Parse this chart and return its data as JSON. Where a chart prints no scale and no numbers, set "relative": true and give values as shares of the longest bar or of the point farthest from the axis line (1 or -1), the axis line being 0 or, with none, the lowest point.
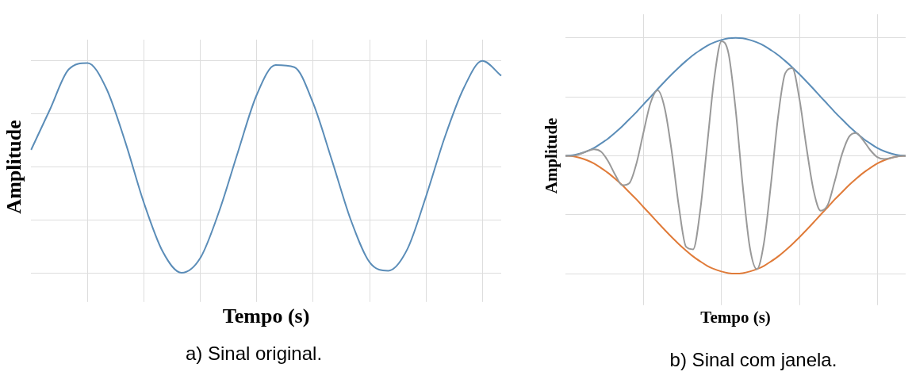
{
  "chart_data": [
    {
      "type": "line",
      "relative": true,
      "grid": true,
      "legend": false,
      "marker": "none",
      "line_style": "solid",
      "tick_labels": false,
      "xlabel": "Tempo (s)",
      "ylabel": "Amplitude",
      "annotations": [
        "a)   Sinal original."
      ],
      "categories": [
        null,
        null,
        null,
        null,
        null,
        null,
        null,
        null,
        null,
        null,
        null,
        null,
        null,
        null,
        null,
        null,
        null,
        null,
        null,
        null,
        null,
        null,
        null,
        null,
        null,
        null
      ],
      "series": [
        {
          "color": "#5b8db8",
          "values": [
            0.58,
            0.77,
            0.96,
            0.99,
            0.87,
            0.62,
            0.33,
            0.1,
            0.0,
            0.07,
            0.29,
            0.57,
            0.84,
            0.98,
            0.97,
            0.8,
            0.53,
            0.25,
            0.05,
            0.01,
            0.11,
            0.36,
            0.64,
            0.87,
            1.0,
            0.93
          ]
        }
      ]
    },
    {
      "type": "line",
      "relative": true,
      "grid": true,
      "legend": false,
      "marker": "none",
      "line_style": "solid",
      "tick_labels": false,
      "xlabel": "Tempo (s)",
      "ylabel": "Amplitude",
      "annotations": [
        "b)   Sinal com janela."
      ],
      "categories": [
        null,
        null,
        null,
        null,
        null,
        null,
        null,
        null,
        null,
        null,
        null,
        null,
        null,
        null,
        null,
        null,
        null,
        null,
        null,
        null,
        null,
        null,
        null,
        null,
        null,
        null,
        null,
        null,
        null,
        null,
        null,
        null,
        null,
        null,
        null,
        null,
        null,
        null,
        null,
        null,
        null,
        null,
        null,
        null,
        null,
        null,
        null,
        null,
        null
      ],
      "series": [
        {
          "color": "#999999",
          "values": [
            0.5,
            0.5,
            0.507,
            0.519,
            0.527,
            0.517,
            0.477,
            0.419,
            0.375,
            0.384,
            0.467,
            0.6,
            0.725,
            0.777,
            0.7,
            0.514,
            0.282,
            0.114,
            0.103,
            0.267,
            0.551,
            0.832,
            0.986,
            0.933,
            0.696,
            0.375,
            0.112,
            0.019,
            0.131,
            0.384,
            0.667,
            0.85,
            0.871,
            0.742,
            0.535,
            0.353,
            0.267,
            0.291,
            0.393,
            0.505,
            0.58,
            0.596,
            0.566,
            0.524,
            0.494,
            0.486,
            0.491,
            0.498,
            0.5
          ]
        },
        {
          "color": "#5b8db8",
          "values": [
            0.5,
            0.502,
            0.509,
            0.519,
            0.533,
            0.552,
            0.573,
            0.598,
            0.625,
            0.655,
            0.685,
            0.718,
            0.75,
            0.783,
            0.815,
            0.846,
            0.875,
            0.902,
            0.927,
            0.948,
            0.967,
            0.981,
            0.991,
            0.998,
            1.0,
            0.998,
            0.991,
            0.981,
            0.967,
            0.948,
            0.927,
            0.902,
            0.875,
            0.846,
            0.815,
            0.783,
            0.75,
            0.718,
            0.685,
            0.655,
            0.625,
            0.598,
            0.573,
            0.552,
            0.533,
            0.519,
            0.509,
            0.502,
            0.5
          ]
        },
        {
          "color": "#e07b39",
          "values": [
            0.5,
            0.498,
            0.491,
            0.481,
            0.467,
            0.448,
            0.427,
            0.402,
            0.375,
            0.345,
            0.315,
            0.282,
            0.25,
            0.217,
            0.185,
            0.154,
            0.125,
            0.098,
            0.073,
            0.052,
            0.033,
            0.019,
            0.009,
            0.002,
            0.0,
            0.002,
            0.009,
            0.019,
            0.033,
            0.052,
            0.073,
            0.098,
            0.125,
            0.154,
            0.185,
            0.217,
            0.25,
            0.282,
            0.315,
            0.345,
            0.375,
            0.402,
            0.427,
            0.448,
            0.467,
            0.481,
            0.491,
            0.498,
            0.5
          ]
        }
      ]
    }
  ]
}
